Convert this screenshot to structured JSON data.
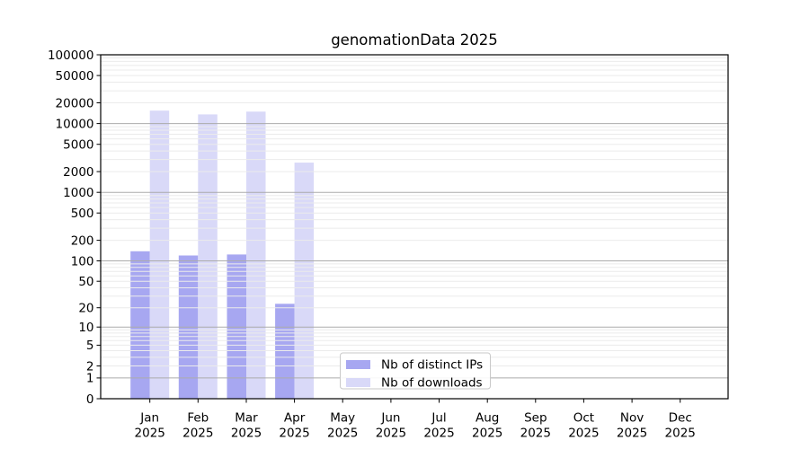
{
  "chart": {
    "background": "#ffffff",
    "frame_color": "#000000",
    "text_color": "#000000"
  },
  "chart_data": {
    "type": "bar",
    "title": "genomationData 2025",
    "x": {
      "months": [
        "Jan",
        "Feb",
        "Mar",
        "Apr",
        "May",
        "Jun",
        "Jul",
        "Aug",
        "Sep",
        "Oct",
        "Nov",
        "Dec"
      ],
      "year": "2025"
    },
    "series": [
      {
        "name": "Nb of distinct IPs",
        "color": "#a7a7f1",
        "values": [
          138,
          120,
          124,
          23,
          0,
          0,
          0,
          0,
          0,
          0,
          0,
          0
        ]
      },
      {
        "name": "Nb of downloads",
        "color": "#d9d9f8",
        "values": [
          15400,
          13600,
          14900,
          2700,
          0,
          0,
          0,
          0,
          0,
          0,
          0,
          0
        ]
      }
    ],
    "yscale": "log1p",
    "ylim": [
      0,
      100000
    ],
    "y_ticks": [
      {
        "value": 0,
        "label": "0"
      },
      {
        "value": 1,
        "label": "1"
      },
      {
        "value": 2,
        "label": "2"
      },
      {
        "value": 5,
        "label": "5"
      },
      {
        "value": 10,
        "label": "10"
      },
      {
        "value": 20,
        "label": "20"
      },
      {
        "value": 50,
        "label": "50"
      },
      {
        "value": 100,
        "label": "100"
      },
      {
        "value": 200,
        "label": "200"
      },
      {
        "value": 500,
        "label": "500"
      },
      {
        "value": 1000,
        "label": "1000"
      },
      {
        "value": 2000,
        "label": "2000"
      },
      {
        "value": 5000,
        "label": "5000"
      },
      {
        "value": 10000,
        "label": "10000"
      },
      {
        "value": 20000,
        "label": "20000"
      },
      {
        "value": 50000,
        "label": "50000"
      },
      {
        "value": 100000,
        "label": "100000"
      }
    ],
    "grid": {
      "show": true,
      "major_color": "#ababab",
      "minor_color": "#ebebeb"
    },
    "legend": {
      "position": "lower-center-inside"
    }
  }
}
